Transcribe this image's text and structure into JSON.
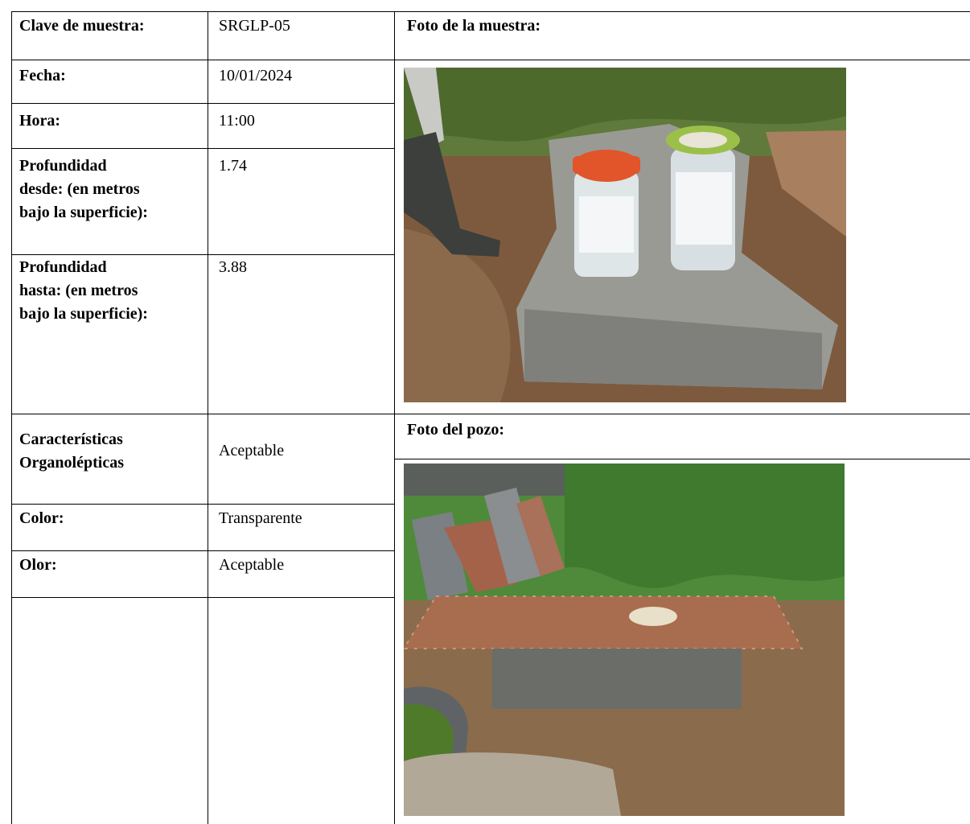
{
  "table": {
    "rows": [
      [
        "Clave de muestra:",
        "SRGLP-05"
      ],
      [
        "Fecha:",
        "10/01/2024"
      ],
      [
        "Hora:",
        "11:00"
      ],
      [
        "Profundidad\ndesde: (en metros\nbajo la superficie):",
        "1.74"
      ],
      [
        "Profundidad\nhasta: (en metros\nbajo la superficie):",
        "3.88"
      ],
      [
        "Características\nOrganolépticas",
        "Aceptable"
      ],
      [
        "Color:",
        "Transparente"
      ],
      [
        "Olor:",
        "Aceptable"
      ]
    ]
  },
  "photos": [
    {
      "label": "Foto de la muestra:"
    },
    {
      "label": "Foto del pozo:"
    }
  ]
}
